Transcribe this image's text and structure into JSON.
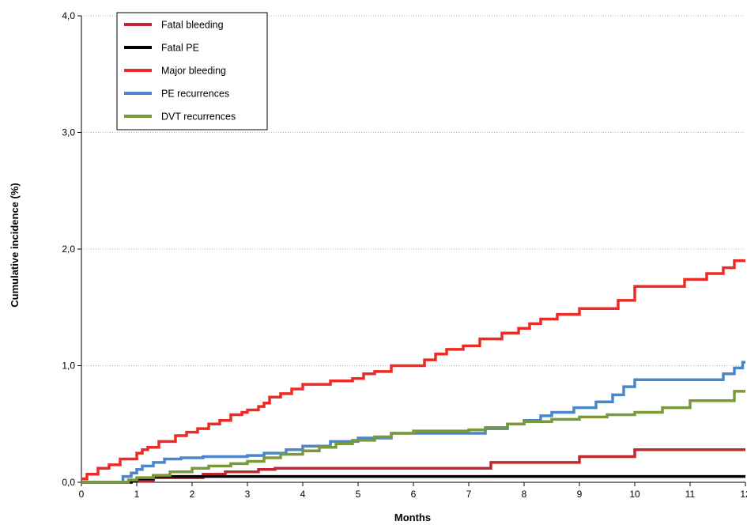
{
  "chart_data": {
    "type": "line",
    "step": true,
    "xlabel": "Months",
    "ylabel": "Cumulative incidence (%)",
    "xlim": [
      0,
      12
    ],
    "ylim": [
      0,
      4
    ],
    "xticks": [
      0,
      1,
      2,
      3,
      4,
      5,
      6,
      7,
      8,
      9,
      10,
      11,
      12
    ],
    "xtick_labels": [
      "0",
      "1",
      "2",
      "3",
      "4",
      "5",
      "6",
      "7",
      "8",
      "9",
      "10",
      "11",
      "12"
    ],
    "yticks": [
      0,
      1,
      2,
      3,
      4
    ],
    "ytick_labels": [
      "0,0",
      "1,0",
      "2,0",
      "3,0",
      "4,0"
    ],
    "grid": "horizontal dotted",
    "legend_position": "top-left",
    "series": [
      {
        "name": "Fatal bleeding",
        "color": "#c0282d",
        "x": [
          0,
          0.9,
          1.3,
          2.2,
          2.6,
          3.2,
          3.5,
          7.4,
          9.0,
          10.0,
          12.0
        ],
        "y": [
          0,
          0.01,
          0.04,
          0.07,
          0.09,
          0.11,
          0.12,
          0.17,
          0.22,
          0.28,
          0.28
        ]
      },
      {
        "name": "Fatal PE",
        "color": "#000000",
        "x": [
          0,
          0.9,
          1.0,
          1.3,
          12.0
        ],
        "y": [
          0,
          0.01,
          0.03,
          0.05,
          0.05
        ]
      },
      {
        "name": "Major bleeding",
        "color": "#ee2a26",
        "x": [
          0,
          0.1,
          0.3,
          0.5,
          0.7,
          1.0,
          1.1,
          1.2,
          1.4,
          1.7,
          1.9,
          2.1,
          2.3,
          2.5,
          2.7,
          2.9,
          3.0,
          3.2,
          3.3,
          3.4,
          3.6,
          3.8,
          4.0,
          4.5,
          4.9,
          5.1,
          5.3,
          5.6,
          6.2,
          6.4,
          6.6,
          6.9,
          7.2,
          7.6,
          7.9,
          8.1,
          8.3,
          8.6,
          9.0,
          9.7,
          10.0,
          10.9,
          11.3,
          11.6,
          11.8,
          12.0
        ],
        "y": [
          0.03,
          0.07,
          0.12,
          0.15,
          0.2,
          0.25,
          0.28,
          0.3,
          0.35,
          0.4,
          0.43,
          0.46,
          0.5,
          0.53,
          0.58,
          0.6,
          0.62,
          0.65,
          0.68,
          0.73,
          0.76,
          0.8,
          0.84,
          0.87,
          0.89,
          0.93,
          0.95,
          1.0,
          1.05,
          1.1,
          1.14,
          1.17,
          1.23,
          1.28,
          1.32,
          1.36,
          1.4,
          1.44,
          1.49,
          1.56,
          1.68,
          1.74,
          1.79,
          1.84,
          1.9,
          1.9
        ]
      },
      {
        "name": "PE recurrences",
        "color": "#4a86c8",
        "x": [
          0,
          0.75,
          0.9,
          1.0,
          1.1,
          1.3,
          1.5,
          1.8,
          2.2,
          3.0,
          3.3,
          3.7,
          4.0,
          4.5,
          5.0,
          5.6,
          7.3,
          7.7,
          8.0,
          8.3,
          8.5,
          8.9,
          9.3,
          9.6,
          9.8,
          10.0,
          11.0,
          11.6,
          11.8,
          11.95,
          12.0
        ],
        "y": [
          0,
          0.05,
          0.08,
          0.11,
          0.14,
          0.17,
          0.2,
          0.21,
          0.22,
          0.23,
          0.25,
          0.28,
          0.31,
          0.35,
          0.38,
          0.42,
          0.46,
          0.5,
          0.53,
          0.57,
          0.6,
          0.64,
          0.69,
          0.75,
          0.82,
          0.88,
          0.88,
          0.93,
          0.98,
          1.03,
          1.03
        ]
      },
      {
        "name": "DVT recurrences",
        "color": "#7a9a3a",
        "x": [
          0,
          0.85,
          1.0,
          1.3,
          1.6,
          2.0,
          2.3,
          2.7,
          3.0,
          3.3,
          3.6,
          4.0,
          4.3,
          4.6,
          4.9,
          5.3,
          5.6,
          6.0,
          7.0,
          7.3,
          7.7,
          8.0,
          8.5,
          9.0,
          9.5,
          10.0,
          10.5,
          11.0,
          11.8,
          12.0
        ],
        "y": [
          0,
          0.02,
          0.04,
          0.06,
          0.09,
          0.12,
          0.14,
          0.16,
          0.18,
          0.21,
          0.24,
          0.27,
          0.3,
          0.33,
          0.36,
          0.39,
          0.42,
          0.44,
          0.45,
          0.47,
          0.5,
          0.52,
          0.54,
          0.56,
          0.58,
          0.6,
          0.64,
          0.7,
          0.78,
          0.78
        ]
      }
    ]
  }
}
